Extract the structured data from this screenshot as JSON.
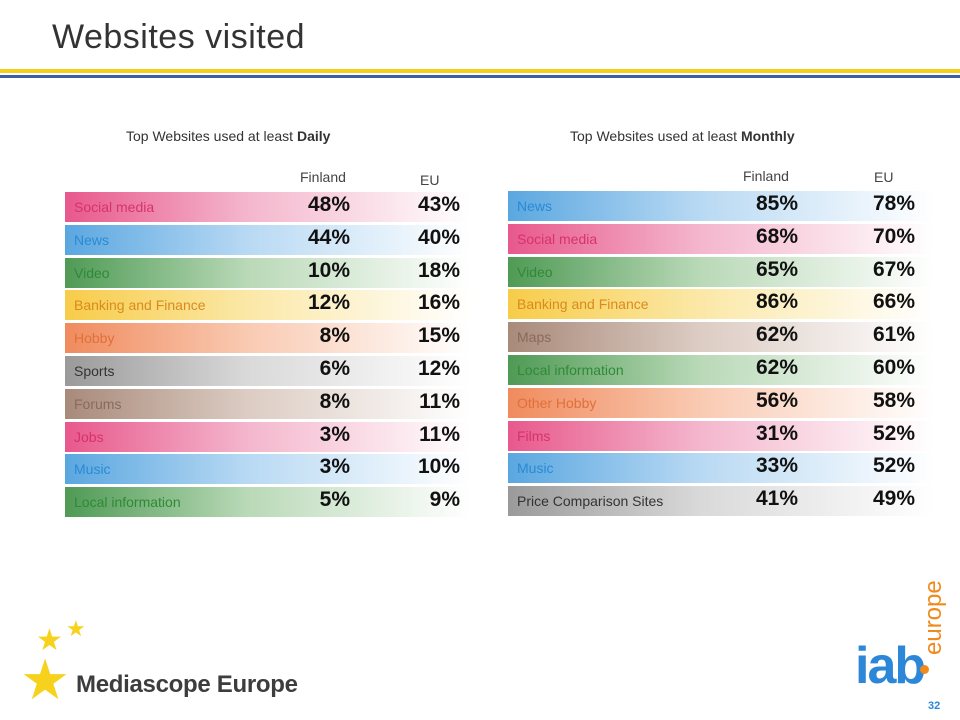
{
  "title": "Websites visited",
  "daily": {
    "subtitle_prefix": "Top Websites used at least ",
    "subtitle_bold": "Daily",
    "col_finland": "Finland",
    "col_eu": "EU",
    "rows": [
      {
        "label": "Social media",
        "finland": "48%",
        "eu": "43%",
        "color": "#d6336c"
      },
      {
        "label": "News",
        "finland": "44%",
        "eu": "40%",
        "color": "#2a8ad4"
      },
      {
        "label": "Video",
        "finland": "10%",
        "eu": "18%",
        "color": "#2f8a36"
      },
      {
        "label": "Banking and Finance",
        "finland": "12%",
        "eu": "16%",
        "color": "#d98b1c"
      },
      {
        "label": "Hobby",
        "finland": "8%",
        "eu": "15%",
        "color": "#e0703a"
      },
      {
        "label": "Sports",
        "finland": "6%",
        "eu": "12%",
        "color": "#333333"
      },
      {
        "label": "Forums",
        "finland": "8%",
        "eu": "11%",
        "color": "#8a6a5a"
      },
      {
        "label": "Jobs",
        "finland": "3%",
        "eu": "11%",
        "color": "#d6336c"
      },
      {
        "label": "Music",
        "finland": "3%",
        "eu": "10%",
        "color": "#2a8ad4"
      },
      {
        "label": "Local information",
        "finland": "5%",
        "eu": "9%",
        "color": "#2f8a36"
      }
    ]
  },
  "monthly": {
    "subtitle_prefix": "Top Websites used at least ",
    "subtitle_bold": "Monthly",
    "col_finland": "Finland",
    "col_eu": "EU",
    "rows": [
      {
        "label": "News",
        "finland": "85%",
        "eu": "78%",
        "color": "#2a8ad4"
      },
      {
        "label": "Social media",
        "finland": "68%",
        "eu": "70%",
        "color": "#d6336c"
      },
      {
        "label": "Video",
        "finland": "65%",
        "eu": "67%",
        "color": "#2f8a36"
      },
      {
        "label": "Banking and Finance",
        "finland": "86%",
        "eu": "66%",
        "color": "#d98b1c"
      },
      {
        "label": "Maps",
        "finland": "62%",
        "eu": "61%",
        "color": "#8a6a5a"
      },
      {
        "label": "Local information",
        "finland": "62%",
        "eu": "60%",
        "color": "#2f8a36"
      },
      {
        "label": "Other Hobby",
        "finland": "56%",
        "eu": "58%",
        "color": "#e0703a"
      },
      {
        "label": "Films",
        "finland": "31%",
        "eu": "52%",
        "color": "#d6336c"
      },
      {
        "label": "Music",
        "finland": "33%",
        "eu": "52%",
        "color": "#2a8ad4"
      },
      {
        "label": "Price Comparison Sites",
        "finland": "41%",
        "eu": "49%",
        "color": "#333333"
      }
    ]
  },
  "footer": {
    "logo_text": "Mediascope Europe",
    "iab_logo": "iab",
    "iab_europe": "europe",
    "page_number": "32"
  }
}
